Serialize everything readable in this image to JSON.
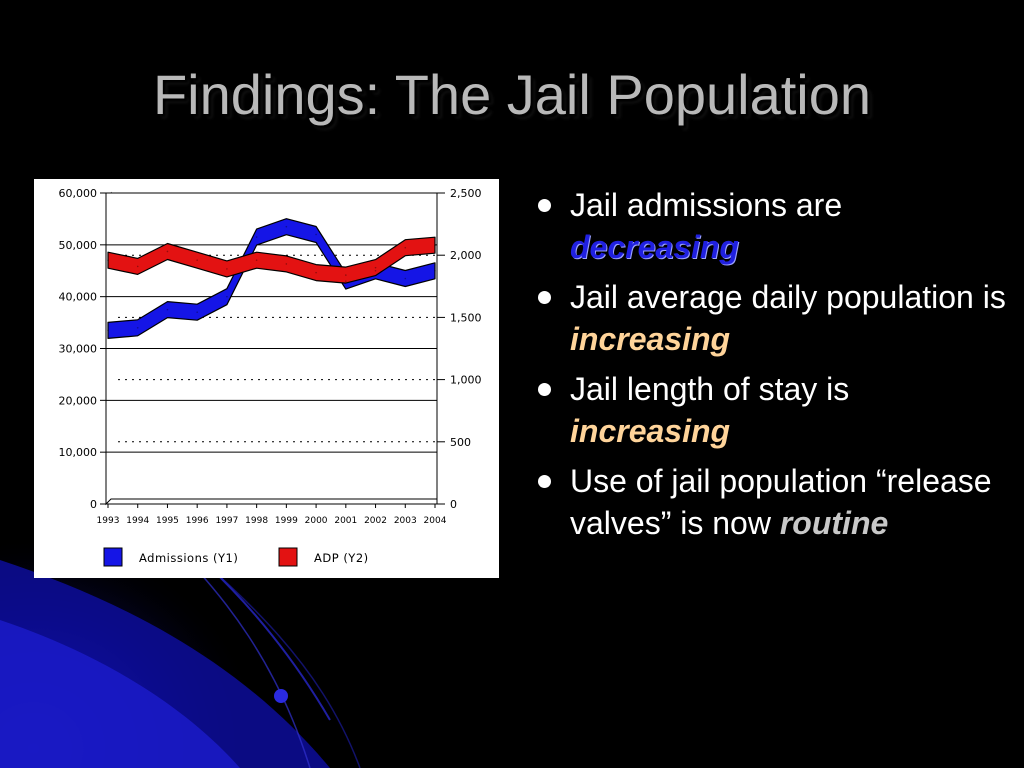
{
  "slide": {
    "title": "Findings: The Jail Population"
  },
  "bullets": [
    {
      "text": "Jail admissions are",
      "emphasis": "decreasing",
      "emphasis_color": "#2020e0"
    },
    {
      "text": "Jail average daily population is",
      "emphasis": "increasing",
      "emphasis_color": "#ffd49a"
    },
    {
      "text": "Jail length of stay is",
      "emphasis": "increasing",
      "emphasis_color": "#ffd49a"
    },
    {
      "text": "Use of jail population “release valves” is now",
      "emphasis": "routine",
      "emphasis_color": "#c8c8c8"
    }
  ],
  "colors": {
    "background": "#000000",
    "title": "#b9b9b9",
    "admissions_series": "#1515e6",
    "adp_series": "#e31212"
  },
  "chart_data": {
    "type": "line",
    "title": "",
    "xlabel": "",
    "ylabel": "",
    "x": [
      "1993",
      "1994",
      "1995",
      "1996",
      "1997",
      "1998",
      "1999",
      "2000",
      "2001",
      "2002",
      "2003",
      "2004"
    ],
    "y1_ticks": [
      "0",
      "10,000",
      "20,000",
      "30,000",
      "40,000",
      "50,000",
      "60,000"
    ],
    "y1_lim": [
      0,
      60000
    ],
    "y2_ticks": [
      "0",
      "500",
      "1,000",
      "1,500",
      "2,000",
      "2,500"
    ],
    "y2_lim": [
      0,
      2500
    ],
    "grid": true,
    "legend_position": "bottom",
    "series": [
      {
        "name": "Admissions (Y1)",
        "axis": "y1",
        "values": [
          33500,
          34000,
          37500,
          37000,
          40000,
          51500,
          53500,
          52000,
          43000,
          45000,
          43500,
          45000
        ]
      },
      {
        "name": "ADP (Y2)",
        "axis": "y2",
        "values": [
          1960,
          1910,
          2030,
          1960,
          1890,
          1960,
          1930,
          1860,
          1840,
          1900,
          2060,
          2080
        ]
      }
    ]
  }
}
